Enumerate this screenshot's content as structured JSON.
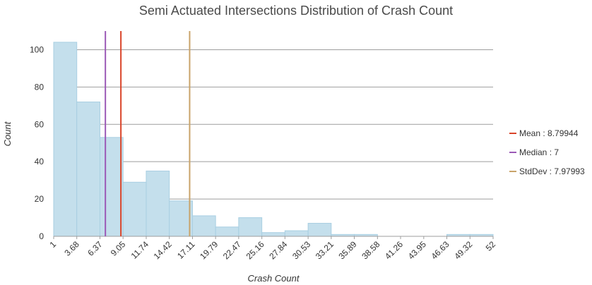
{
  "chart_data": {
    "type": "bar",
    "title": "Semi Actuated Intersections Distribution of Crash Count",
    "xlabel": "Crash Count",
    "ylabel": "Count",
    "x_ticks": [
      "1",
      "3.68",
      "6.37",
      "9.05",
      "11.74",
      "14.42",
      "17.11",
      "19.79",
      "22.47",
      "25.16",
      "27.84",
      "30.53",
      "33.21",
      "35.89",
      "38.58",
      "41.26",
      "43.95",
      "46.63",
      "49.32",
      "52"
    ],
    "y_ticks": [
      0,
      20,
      40,
      60,
      80,
      100
    ],
    "ylim": [
      0,
      110
    ],
    "xlim": [
      1,
      52
    ],
    "bin_edges": [
      1,
      3.68,
      6.37,
      9.05,
      11.74,
      14.42,
      17.11,
      19.79,
      22.47,
      25.16,
      27.84,
      30.53,
      33.21,
      35.89,
      38.58,
      41.26,
      43.95,
      46.63,
      49.32,
      52
    ],
    "values": [
      104,
      72,
      53,
      29,
      35,
      19,
      11,
      5,
      10,
      2,
      3,
      7,
      1,
      1,
      0,
      0,
      0,
      1,
      1
    ],
    "grid": "horizontal",
    "legend_position": "right",
    "reference_lines": [
      {
        "label": "Mean : 8.79944",
        "value": 8.79944,
        "color": "#d9452b"
      },
      {
        "label": "Median : 7",
        "value": 7,
        "color": "#9b59b6"
      },
      {
        "label": "StdDev : 7.97993",
        "value": 16.77937,
        "color": "#c9a46a"
      }
    ],
    "bar_color": "#c4dfec",
    "bar_stroke": "#a9cfe2"
  }
}
